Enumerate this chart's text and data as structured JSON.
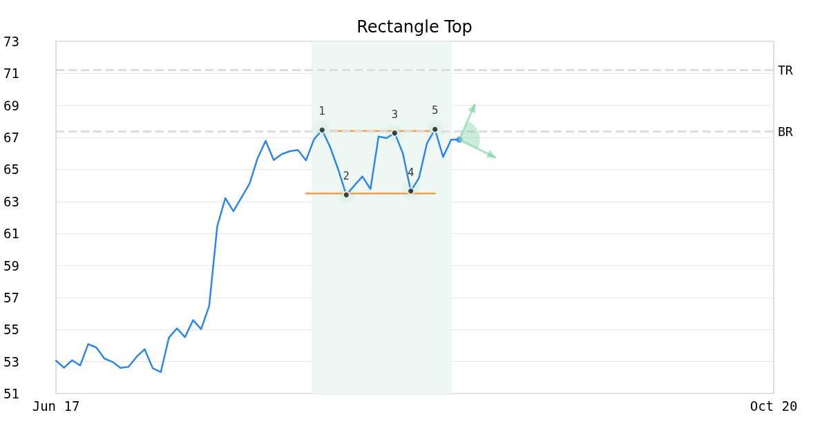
{
  "chart_data": {
    "type": "line",
    "title": "Rectangle Top",
    "categories": [
      "Jun 17",
      null,
      null,
      null,
      null,
      null,
      null,
      null,
      null,
      null,
      null,
      null,
      null,
      null,
      null,
      null,
      null,
      null,
      null,
      null,
      null,
      null,
      null,
      null,
      null,
      null,
      null,
      null,
      null,
      null,
      null,
      null,
      null,
      null,
      null,
      null,
      null,
      null,
      null,
      null,
      null,
      null,
      null,
      null,
      null,
      null,
      null,
      null,
      null,
      null,
      null,
      null,
      null,
      null,
      null,
      null,
      null,
      null,
      null,
      null,
      null,
      null,
      null,
      null,
      null,
      null,
      null,
      null,
      null,
      null,
      null,
      null,
      null,
      null,
      null,
      null,
      null,
      null,
      null,
      null,
      null,
      null,
      null,
      null,
      null,
      null,
      null,
      null,
      null,
      "Oct 20"
    ],
    "ylim": [
      51,
      73
    ],
    "yticks": [
      51,
      53,
      55,
      57,
      59,
      61,
      63,
      65,
      67,
      69,
      71,
      73
    ],
    "grid": "y",
    "line_style": "solid",
    "series": [
      {
        "color": "#2e86e8",
        "values": [
          53.06,
          52.61,
          53.08,
          52.76,
          54.09,
          53.88,
          53.19,
          52.98,
          52.61,
          52.67,
          53.3,
          53.77,
          52.58,
          52.34,
          54.49,
          55.07,
          54.52,
          55.59,
          55.03,
          56.47,
          61.45,
          63.21,
          62.39,
          63.25,
          64.11,
          65.7,
          66.79,
          65.59,
          65.96,
          66.14,
          66.22,
          65.57,
          66.89,
          67.47,
          66.4,
          65.0,
          63.41,
          64.0,
          64.56,
          63.78,
          67.06,
          66.96,
          67.28,
          66.03,
          63.65,
          64.45,
          66.63,
          67.51,
          65.78,
          66.86,
          66.86,
          null,
          null,
          null,
          null,
          null,
          null,
          null,
          null,
          null,
          null,
          null,
          null,
          null,
          null,
          null,
          null,
          null,
          null,
          null,
          null,
          null,
          null,
          null,
          null,
          null,
          null,
          null,
          null,
          null,
          null,
          null,
          null,
          null,
          null,
          null,
          null,
          null,
          null,
          null
        ]
      },
      {
        "type": "line",
        "color": "#f0a050",
        "values": [
          null,
          null,
          null,
          null,
          null,
          null,
          null,
          null,
          null,
          null,
          null,
          null,
          null,
          null,
          null,
          null,
          null,
          null,
          null,
          null,
          null,
          null,
          null,
          null,
          null,
          null,
          null,
          null,
          null,
          null,
          null,
          null,
          null,
          null,
          67.4,
          67.4,
          67.4,
          67.4,
          67.4,
          67.4,
          67.4,
          67.4,
          67.4,
          67.4,
          67.4,
          67.4,
          67.4,
          67.4,
          null,
          null,
          null,
          null,
          null,
          null,
          null,
          null,
          null,
          null,
          null,
          null,
          null,
          null,
          null,
          null,
          null,
          null,
          null,
          null,
          null,
          null,
          null,
          null,
          null,
          null,
          null,
          null,
          null,
          null,
          null,
          null,
          null,
          null,
          null,
          null,
          null,
          null,
          null,
          null,
          null,
          null
        ]
      },
      {
        "type": "line",
        "color": "#f0a050",
        "values": [
          null,
          null,
          null,
          null,
          null,
          null,
          null,
          null,
          null,
          null,
          null,
          null,
          null,
          null,
          null,
          null,
          null,
          null,
          null,
          null,
          null,
          null,
          null,
          null,
          null,
          null,
          null,
          null,
          null,
          null,
          null,
          63.5,
          63.5,
          63.5,
          63.5,
          63.5,
          63.5,
          63.5,
          63.5,
          63.5,
          63.5,
          63.5,
          63.5,
          63.5,
          63.5,
          63.5,
          63.5,
          63.5,
          null,
          null,
          null,
          null,
          null,
          null,
          null,
          null,
          null,
          null,
          null,
          null,
          null,
          null,
          null,
          null,
          null,
          null,
          null,
          null,
          null,
          null,
          null,
          null,
          null,
          null,
          null,
          null,
          null,
          null,
          null,
          null,
          null,
          null,
          null,
          null,
          null,
          null,
          null,
          null,
          null,
          null
        ]
      },
      {
        "type": "scatter",
        "name": "1",
        "color": "#000000",
        "values": [
          null,
          null,
          null,
          null,
          null,
          null,
          null,
          null,
          null,
          null,
          null,
          null,
          null,
          null,
          null,
          null,
          null,
          null,
          null,
          null,
          null,
          null,
          null,
          null,
          null,
          null,
          null,
          null,
          null,
          null,
          null,
          null,
          null,
          67.47,
          null,
          null,
          null,
          null,
          null,
          null,
          null,
          null,
          null,
          null,
          null,
          null,
          null,
          null,
          null,
          null,
          null,
          null,
          null,
          null,
          null,
          null,
          null,
          null,
          null,
          null,
          null,
          null,
          null,
          null,
          null,
          null,
          null,
          null,
          null,
          null,
          null,
          null,
          null,
          null,
          null,
          null,
          null,
          null,
          null,
          null,
          null,
          null,
          null,
          null,
          null,
          null,
          null,
          null,
          null,
          null
        ]
      },
      {
        "type": "scatter",
        "name": "2",
        "color": "#000000",
        "values": [
          null,
          null,
          null,
          null,
          null,
          null,
          null,
          null,
          null,
          null,
          null,
          null,
          null,
          null,
          null,
          null,
          null,
          null,
          null,
          null,
          null,
          null,
          null,
          null,
          null,
          null,
          null,
          null,
          null,
          null,
          null,
          null,
          null,
          null,
          null,
          null,
          63.41,
          null,
          null,
          null,
          null,
          null,
          null,
          null,
          null,
          null,
          null,
          null,
          null,
          null,
          null,
          null,
          null,
          null,
          null,
          null,
          null,
          null,
          null,
          null,
          null,
          null,
          null,
          null,
          null,
          null,
          null,
          null,
          null,
          null,
          null,
          null,
          null,
          null,
          null,
          null,
          null,
          null,
          null,
          null,
          null,
          null,
          null,
          null,
          null,
          null,
          null,
          null,
          null,
          null
        ]
      },
      {
        "type": "scatter",
        "name": "3",
        "color": "#000000",
        "values": [
          null,
          null,
          null,
          null,
          null,
          null,
          null,
          null,
          null,
          null,
          null,
          null,
          null,
          null,
          null,
          null,
          null,
          null,
          null,
          null,
          null,
          null,
          null,
          null,
          null,
          null,
          null,
          null,
          null,
          null,
          null,
          null,
          null,
          null,
          null,
          null,
          null,
          null,
          null,
          null,
          null,
          null,
          67.28,
          null,
          null,
          null,
          null,
          null,
          null,
          null,
          null,
          null,
          null,
          null,
          null,
          null,
          null,
          null,
          null,
          null,
          null,
          null,
          null,
          null,
          null,
          null,
          null,
          null,
          null,
          null,
          null,
          null,
          null,
          null,
          null,
          null,
          null,
          null,
          null,
          null,
          null,
          null,
          null,
          null,
          null,
          null,
          null,
          null,
          null,
          null
        ]
      },
      {
        "type": "scatter",
        "name": "4",
        "color": "#000000",
        "values": [
          null,
          null,
          null,
          null,
          null,
          null,
          null,
          null,
          null,
          null,
          null,
          null,
          null,
          null,
          null,
          null,
          null,
          null,
          null,
          null,
          null,
          null,
          null,
          null,
          null,
          null,
          null,
          null,
          null,
          null,
          null,
          null,
          null,
          null,
          null,
          null,
          null,
          null,
          null,
          null,
          null,
          null,
          null,
          null,
          63.65,
          null,
          null,
          null,
          null,
          null,
          null,
          null,
          null,
          null,
          null,
          null,
          null,
          null,
          null,
          null,
          null,
          null,
          null,
          null,
          null,
          null,
          null,
          null,
          null,
          null,
          null,
          null,
          null,
          null,
          null,
          null,
          null,
          null,
          null,
          null,
          null,
          null,
          null,
          null,
          null,
          null,
          null,
          null,
          null,
          null
        ]
      },
      {
        "type": "scatter",
        "name": "5",
        "color": "#000000",
        "values": [
          null,
          null,
          null,
          null,
          null,
          null,
          null,
          null,
          null,
          null,
          null,
          null,
          null,
          null,
          null,
          null,
          null,
          null,
          null,
          null,
          null,
          null,
          null,
          null,
          null,
          null,
          null,
          null,
          null,
          null,
          null,
          null,
          null,
          null,
          null,
          null,
          null,
          null,
          null,
          null,
          null,
          null,
          null,
          null,
          null,
          null,
          null,
          67.51,
          null,
          null,
          null,
          null,
          null,
          null,
          null,
          null,
          null,
          null,
          null,
          null,
          null,
          null,
          null,
          null,
          null,
          null,
          null,
          null,
          null,
          null,
          null,
          null,
          null,
          null,
          null,
          null,
          null,
          null,
          null,
          null,
          null,
          null,
          null,
          null,
          null,
          null,
          null,
          null,
          null,
          null
        ]
      },
      {
        "type": "scatter",
        "color": "#2e86e8",
        "values": [
          null,
          null,
          null,
          null,
          null,
          null,
          null,
          null,
          null,
          null,
          null,
          null,
          null,
          null,
          null,
          null,
          null,
          null,
          null,
          null,
          null,
          null,
          null,
          null,
          null,
          null,
          null,
          null,
          null,
          null,
          null,
          null,
          null,
          null,
          null,
          null,
          null,
          null,
          null,
          null,
          null,
          null,
          null,
          null,
          null,
          null,
          null,
          null,
          null,
          null,
          66.86,
          null,
          null,
          null,
          null,
          null,
          null,
          null,
          null,
          null,
          null,
          null,
          null,
          null,
          null,
          null,
          null,
          null,
          null,
          null,
          null,
          null,
          null,
          null,
          null,
          null,
          null,
          null,
          null,
          null,
          null,
          null,
          null,
          null,
          null,
          null,
          null,
          null,
          null,
          null
        ]
      }
    ],
    "ref_lines": [
      {
        "axis": "y",
        "value": 71.23,
        "label": "TR",
        "color": "#dddddd",
        "line_style": "dashed"
      },
      {
        "axis": "y",
        "value": 67.39,
        "label": "BR",
        "color": "#dddddd",
        "line_style": "dashed"
      }
    ]
  }
}
